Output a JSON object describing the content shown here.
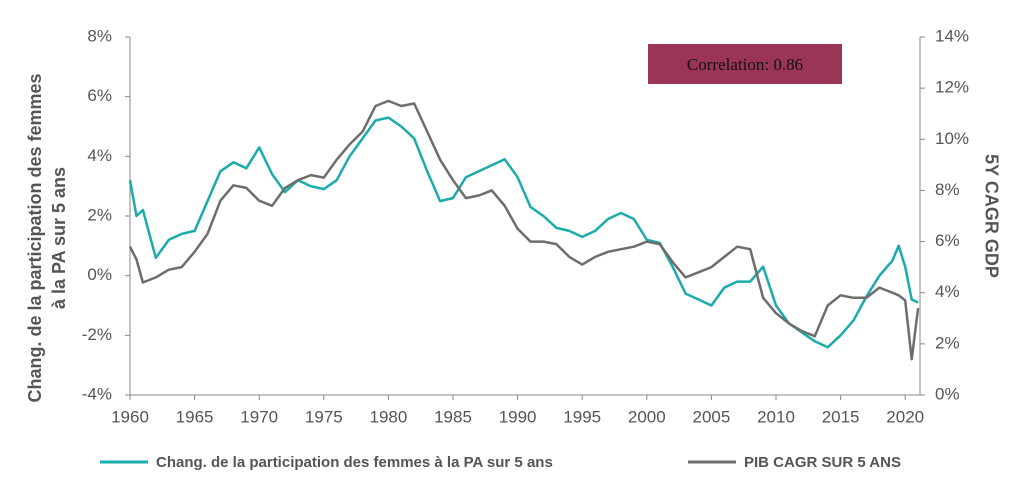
{
  "chart_data": {
    "type": "line",
    "ylabel": [
      "Chang. de la participation des femmes",
      "à la PA sur 5 ans"
    ],
    "y2label": "5Y CAGR GDP",
    "annotation": "Correlation: 0.86",
    "annotation_color": "#9a3556",
    "x": [
      1960,
      1960.5,
      1961,
      1962,
      1963,
      1964,
      1965,
      1966,
      1967,
      1968,
      1969,
      1970,
      1971,
      1972,
      1973,
      1974,
      1975,
      1976,
      1977,
      1978,
      1979,
      1980,
      1981,
      1982,
      1983,
      1984,
      1985,
      1986,
      1987,
      1988,
      1989,
      1990,
      1991,
      1992,
      1993,
      1994,
      1995,
      1996,
      1997,
      1998,
      1999,
      2000,
      2001,
      2002,
      2003,
      2004,
      2005,
      2006,
      2007,
      2008,
      2009,
      2010,
      2011,
      2012,
      2013,
      2014,
      2015,
      2016,
      2017,
      2018,
      2019,
      2019.5,
      2020,
      2020.5,
      2021
    ],
    "series": [
      {
        "name": "Chang. de la participation des femmes à la PA sur 5 ans",
        "color": "#1aabab",
        "values": [
          3.2,
          2.0,
          2.2,
          0.6,
          1.2,
          1.4,
          1.5,
          2.5,
          3.5,
          3.8,
          3.6,
          4.3,
          3.4,
          2.8,
          3.2,
          3.0,
          2.9,
          3.2,
          4.0,
          4.6,
          5.2,
          5.3,
          5.0,
          4.6,
          3.5,
          2.5,
          2.6,
          3.3,
          3.5,
          3.7,
          3.9,
          3.3,
          2.3,
          2.0,
          1.6,
          1.5,
          1.3,
          1.5,
          1.9,
          2.1,
          1.9,
          1.2,
          1.1,
          0.3,
          -0.6,
          -0.8,
          -1.0,
          -0.4,
          -0.2,
          -0.2,
          0.3,
          -1.0,
          -1.6,
          -1.9,
          -2.2,
          -2.4,
          -2.0,
          -1.5,
          -0.7,
          0.0,
          0.5,
          1.0,
          0.3,
          -0.8,
          -0.9
        ]
      },
      {
        "name": "PIB CAGR SUR 5 ANS",
        "color": "#6d6d6d",
        "axis": "y2",
        "values": [
          5.8,
          5.3,
          4.4,
          4.6,
          4.9,
          5.0,
          5.6,
          6.3,
          7.6,
          8.2,
          8.1,
          7.6,
          7.4,
          8.1,
          8.4,
          8.6,
          8.5,
          9.2,
          9.8,
          10.3,
          11.3,
          11.5,
          11.3,
          11.4,
          10.3,
          9.2,
          8.4,
          7.7,
          7.8,
          8.0,
          7.4,
          6.5,
          6.0,
          6.0,
          5.9,
          5.4,
          5.1,
          5.4,
          5.6,
          5.7,
          5.8,
          6.0,
          5.9,
          5.2,
          4.6,
          4.8,
          5.0,
          5.4,
          5.8,
          5.7,
          3.8,
          3.2,
          2.8,
          2.5,
          2.3,
          3.5,
          3.9,
          3.8,
          3.8,
          4.2,
          4.0,
          3.9,
          3.7,
          1.4,
          3.4
        ]
      }
    ],
    "xlim": [
      1960,
      2021.3
    ],
    "xticks": [
      1960,
      1965,
      1970,
      1975,
      1980,
      1985,
      1990,
      1995,
      2000,
      2005,
      2010,
      2015,
      2020
    ],
    "ylim": [
      -4,
      8
    ],
    "yticks": [
      {
        "value": -4,
        "label": "-4%"
      },
      {
        "value": -2,
        "label": "-2%"
      },
      {
        "value": 0,
        "label": "0%"
      },
      {
        "value": 2,
        "label": "2%"
      },
      {
        "value": 4,
        "label": "4%"
      },
      {
        "value": 6,
        "label": "6%"
      },
      {
        "value": 8,
        "label": "8%"
      }
    ],
    "y2lim": [
      0,
      14
    ],
    "y2ticks": [
      {
        "value": 0,
        "label": "0%"
      },
      {
        "value": 2,
        "label": "2%"
      },
      {
        "value": 4,
        "label": "4%"
      },
      {
        "value": 6,
        "label": "6%"
      },
      {
        "value": 8,
        "label": "8%"
      },
      {
        "value": 10,
        "label": "10%"
      },
      {
        "value": 12,
        "label": "12%"
      },
      {
        "value": 14,
        "label": "14%"
      }
    ],
    "grid": false
  }
}
